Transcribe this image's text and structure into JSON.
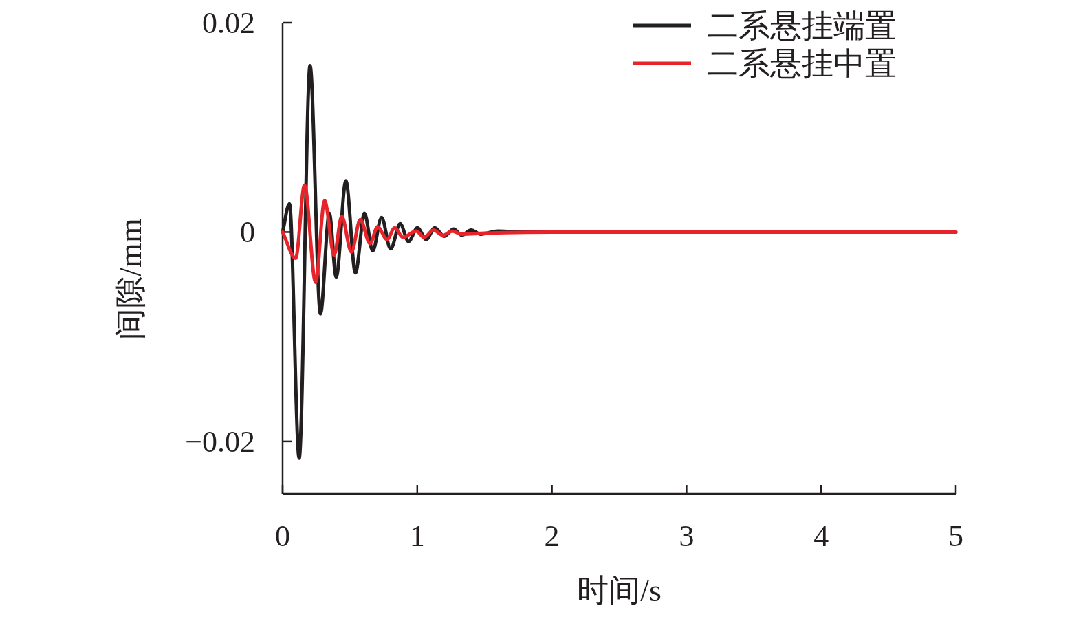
{
  "chart_data": {
    "type": "line",
    "xlabel": "时间/s",
    "ylabel": "间隙/mm",
    "xlim": [
      0,
      5
    ],
    "ylim": [
      -0.025,
      0.02
    ],
    "xticks": [
      0,
      1,
      2,
      3,
      4,
      5
    ],
    "yticks": [
      {
        "value": -0.02,
        "label": "−0.02"
      },
      0,
      0.02
    ],
    "legend": "top right",
    "grid": false,
    "marker": "none",
    "line_style": "solid",
    "series": [
      {
        "name": "二系悬挂端置",
        "color": "#231f20",
        "x": [
          0,
          0.051,
          0.123,
          0.204,
          0.281,
          0.347,
          0.398,
          0.47,
          0.541,
          0.608,
          0.669,
          0.735,
          0.802,
          0.873,
          0.935,
          1.001,
          1.067,
          1.13,
          1.2,
          1.27,
          1.33,
          1.4,
          1.47,
          1.6,
          1.8,
          5
        ],
        "values": [
          0,
          0.0027,
          -0.0216,
          0.0159,
          -0.0078,
          0.0018,
          -0.0043,
          0.0049,
          -0.0039,
          0.0018,
          -0.0018,
          0.0014,
          -0.0016,
          0.0008,
          -0.0009,
          0.0004,
          -0.0007,
          0.0004,
          -0.0004,
          0.0003,
          -0.0003,
          0.0002,
          -0.0002,
          0.0001,
          0,
          0
        ]
      },
      {
        "name": "二系悬挂中置",
        "color": "#e8242b",
        "x": [
          0,
          0.097,
          0.163,
          0.245,
          0.312,
          0.383,
          0.439,
          0.511,
          0.577,
          0.649,
          0.705,
          0.776,
          0.832,
          0.894,
          0.991,
          1.052,
          1.12,
          1.19,
          1.26,
          1.33,
          1.5,
          2,
          5
        ],
        "values": [
          0,
          -0.0025,
          0.0045,
          -0.0048,
          0.003,
          -0.0022,
          0.0015,
          -0.0019,
          0.0012,
          -0.0011,
          0.0005,
          -0.0007,
          0.0004,
          -0.0005,
          0.0001,
          -0.0005,
          0.0002,
          -0.0003,
          0.0001,
          -0.0002,
          -0.0001,
          0,
          0
        ]
      }
    ]
  }
}
